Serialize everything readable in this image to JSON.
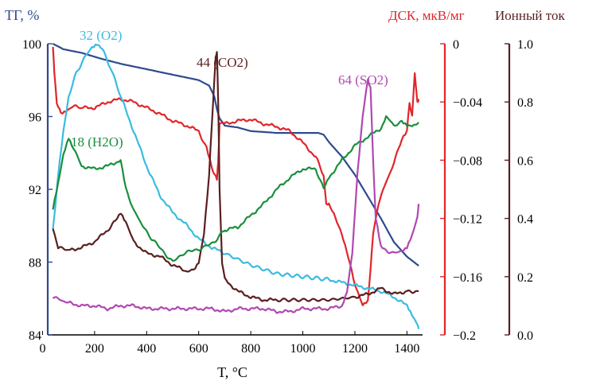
{
  "chart_data": {
    "type": "line",
    "xlabel": "T, °C",
    "x_axis": {
      "range": [
        20,
        1460
      ],
      "ticks": [
        0,
        200,
        400,
        600,
        800,
        1000,
        1200,
        1400
      ]
    },
    "axes": {
      "tg": {
        "label": "ТГ, %",
        "range": [
          84,
          100
        ],
        "ticks": [
          "84",
          "88",
          "92",
          "96",
          "100"
        ],
        "color": "#2e4a8f"
      },
      "dsc": {
        "label": "ДСК, мкВ/мг",
        "range": [
          -0.2,
          0
        ],
        "ticks": [
          "0",
          "−0.04",
          "−0.08",
          "−0.12",
          "−0.16",
          "−0.2"
        ],
        "color": "#e0262b"
      },
      "ion": {
        "label": "Ионный ток",
        "range": [
          0,
          1
        ],
        "ticks": [
          "0.0",
          "0.2",
          "0.4",
          "0.6",
          "0.8",
          "1.0"
        ],
        "color": "#5a1f1f"
      }
    },
    "annotations": [
      {
        "text": "32 (O2)",
        "color": "#3bbbe0"
      },
      {
        "text": "44 (CO2)",
        "color": "#5a1f1f"
      },
      {
        "text": "18 (H2O)",
        "color": "#1a8f3c"
      },
      {
        "text": "64 (SO2)",
        "color": "#b048b0"
      }
    ],
    "series": [
      {
        "axis": "tg",
        "color": "#2e4a8f",
        "x": [
          40,
          80,
          150,
          220,
          300,
          400,
          500,
          600,
          640,
          660,
          670,
          680,
          700,
          750,
          800,
          900,
          1000,
          1060,
          1080,
          1100,
          1150,
          1200,
          1250,
          1300,
          1350,
          1400,
          1445
        ],
        "y": [
          100,
          99.7,
          99.5,
          99.2,
          98.9,
          98.6,
          98.3,
          98.0,
          97.7,
          97.1,
          96.4,
          95.9,
          95.5,
          95.4,
          95.2,
          95.1,
          95.1,
          95.1,
          95.0,
          94.6,
          93.8,
          92.8,
          91.6,
          90.4,
          89.1,
          88.3,
          87.8
        ]
      },
      {
        "axis": "dsc",
        "color": "#e0262b",
        "x": [
          40,
          45,
          55,
          70,
          90,
          110,
          150,
          200,
          250,
          300,
          350,
          400,
          450,
          500,
          550,
          600,
          630,
          650,
          660,
          670,
          675,
          680,
          700,
          750,
          800,
          850,
          900,
          950,
          1000,
          1050,
          1080,
          1090,
          1100,
          1150,
          1200,
          1230,
          1250,
          1260,
          1270,
          1290,
          1320,
          1350,
          1380,
          1400,
          1410,
          1420,
          1430,
          1440,
          1445
        ],
        "y": [
          -0.002,
          -0.02,
          -0.04,
          -0.048,
          -0.046,
          -0.043,
          -0.044,
          -0.044,
          -0.04,
          -0.038,
          -0.04,
          -0.044,
          -0.048,
          -0.053,
          -0.056,
          -0.06,
          -0.072,
          -0.085,
          -0.09,
          -0.093,
          -0.08,
          -0.055,
          -0.055,
          -0.053,
          -0.052,
          -0.055,
          -0.057,
          -0.06,
          -0.068,
          -0.078,
          -0.09,
          -0.11,
          -0.11,
          -0.13,
          -0.165,
          -0.18,
          -0.177,
          -0.155,
          -0.13,
          -0.11,
          -0.095,
          -0.082,
          -0.065,
          -0.06,
          -0.04,
          -0.05,
          -0.02,
          -0.04,
          -0.038
        ]
      },
      {
        "axis": "ion",
        "color": "#3bbbe0",
        "x": [
          40,
          50,
          60,
          80,
          100,
          130,
          160,
          190,
          210,
          230,
          260,
          300,
          350,
          400,
          450,
          500,
          550,
          600,
          650,
          700,
          800,
          900,
          1000,
          1100,
          1150,
          1200,
          1250,
          1300,
          1350,
          1400,
          1420,
          1440,
          1445
        ],
        "y": [
          0.36,
          0.45,
          0.55,
          0.7,
          0.82,
          0.9,
          0.95,
          0.99,
          1.0,
          0.98,
          0.92,
          0.82,
          0.7,
          0.58,
          0.48,
          0.42,
          0.38,
          0.33,
          0.3,
          0.28,
          0.24,
          0.21,
          0.2,
          0.19,
          0.18,
          0.17,
          0.16,
          0.15,
          0.13,
          0.1,
          0.07,
          0.04,
          0.02
        ]
      },
      {
        "axis": "ion",
        "color": "#5a1f1f",
        "x": [
          40,
          60,
          100,
          150,
          200,
          250,
          280,
          300,
          320,
          350,
          400,
          450,
          500,
          550,
          580,
          600,
          620,
          640,
          655,
          665,
          670,
          675,
          680,
          690,
          700,
          750,
          800,
          850,
          900,
          1000,
          1100,
          1200,
          1250,
          1300,
          1350,
          1400,
          1445
        ],
        "y": [
          0.37,
          0.3,
          0.29,
          0.3,
          0.32,
          0.36,
          0.39,
          0.42,
          0.39,
          0.32,
          0.28,
          0.27,
          0.24,
          0.22,
          0.22,
          0.25,
          0.35,
          0.55,
          0.8,
          0.95,
          0.97,
          0.8,
          0.5,
          0.25,
          0.19,
          0.15,
          0.13,
          0.12,
          0.12,
          0.12,
          0.12,
          0.13,
          0.14,
          0.16,
          0.14,
          0.15,
          0.15
        ]
      },
      {
        "axis": "ion",
        "color": "#1a8f3c",
        "x": [
          40,
          60,
          80,
          100,
          120,
          150,
          200,
          250,
          300,
          320,
          350,
          380,
          420,
          460,
          500,
          540,
          580,
          620,
          660,
          700,
          750,
          800,
          850,
          900,
          950,
          1000,
          1050,
          1080,
          1100,
          1150,
          1200,
          1250,
          1300,
          1320,
          1350,
          1380,
          1400,
          1420,
          1445
        ],
        "y": [
          0.43,
          0.52,
          0.62,
          0.68,
          0.64,
          0.58,
          0.57,
          0.58,
          0.6,
          0.5,
          0.43,
          0.38,
          0.33,
          0.29,
          0.25,
          0.28,
          0.29,
          0.3,
          0.32,
          0.36,
          0.37,
          0.41,
          0.45,
          0.5,
          0.54,
          0.57,
          0.57,
          0.5,
          0.54,
          0.6,
          0.65,
          0.68,
          0.71,
          0.75,
          0.72,
          0.73,
          0.72,
          0.72,
          0.73
        ]
      },
      {
        "axis": "ion",
        "color": "#b048b0",
        "x": [
          40,
          100,
          150,
          200,
          250,
          300,
          350,
          400,
          450,
          500,
          550,
          600,
          650,
          700,
          750,
          800,
          850,
          900,
          950,
          1000,
          1050,
          1100,
          1150,
          1170,
          1190,
          1210,
          1230,
          1250,
          1260,
          1270,
          1280,
          1300,
          1320,
          1350,
          1380,
          1400,
          1420,
          1440,
          1445
        ],
        "y": [
          0.13,
          0.11,
          0.1,
          0.1,
          0.09,
          0.1,
          0.1,
          0.09,
          0.09,
          0.09,
          0.09,
          0.09,
          0.09,
          0.08,
          0.09,
          0.09,
          0.09,
          0.08,
          0.08,
          0.09,
          0.09,
          0.09,
          0.1,
          0.15,
          0.28,
          0.55,
          0.75,
          0.88,
          0.85,
          0.6,
          0.4,
          0.3,
          0.29,
          0.28,
          0.29,
          0.3,
          0.34,
          0.4,
          0.45
        ]
      }
    ]
  }
}
